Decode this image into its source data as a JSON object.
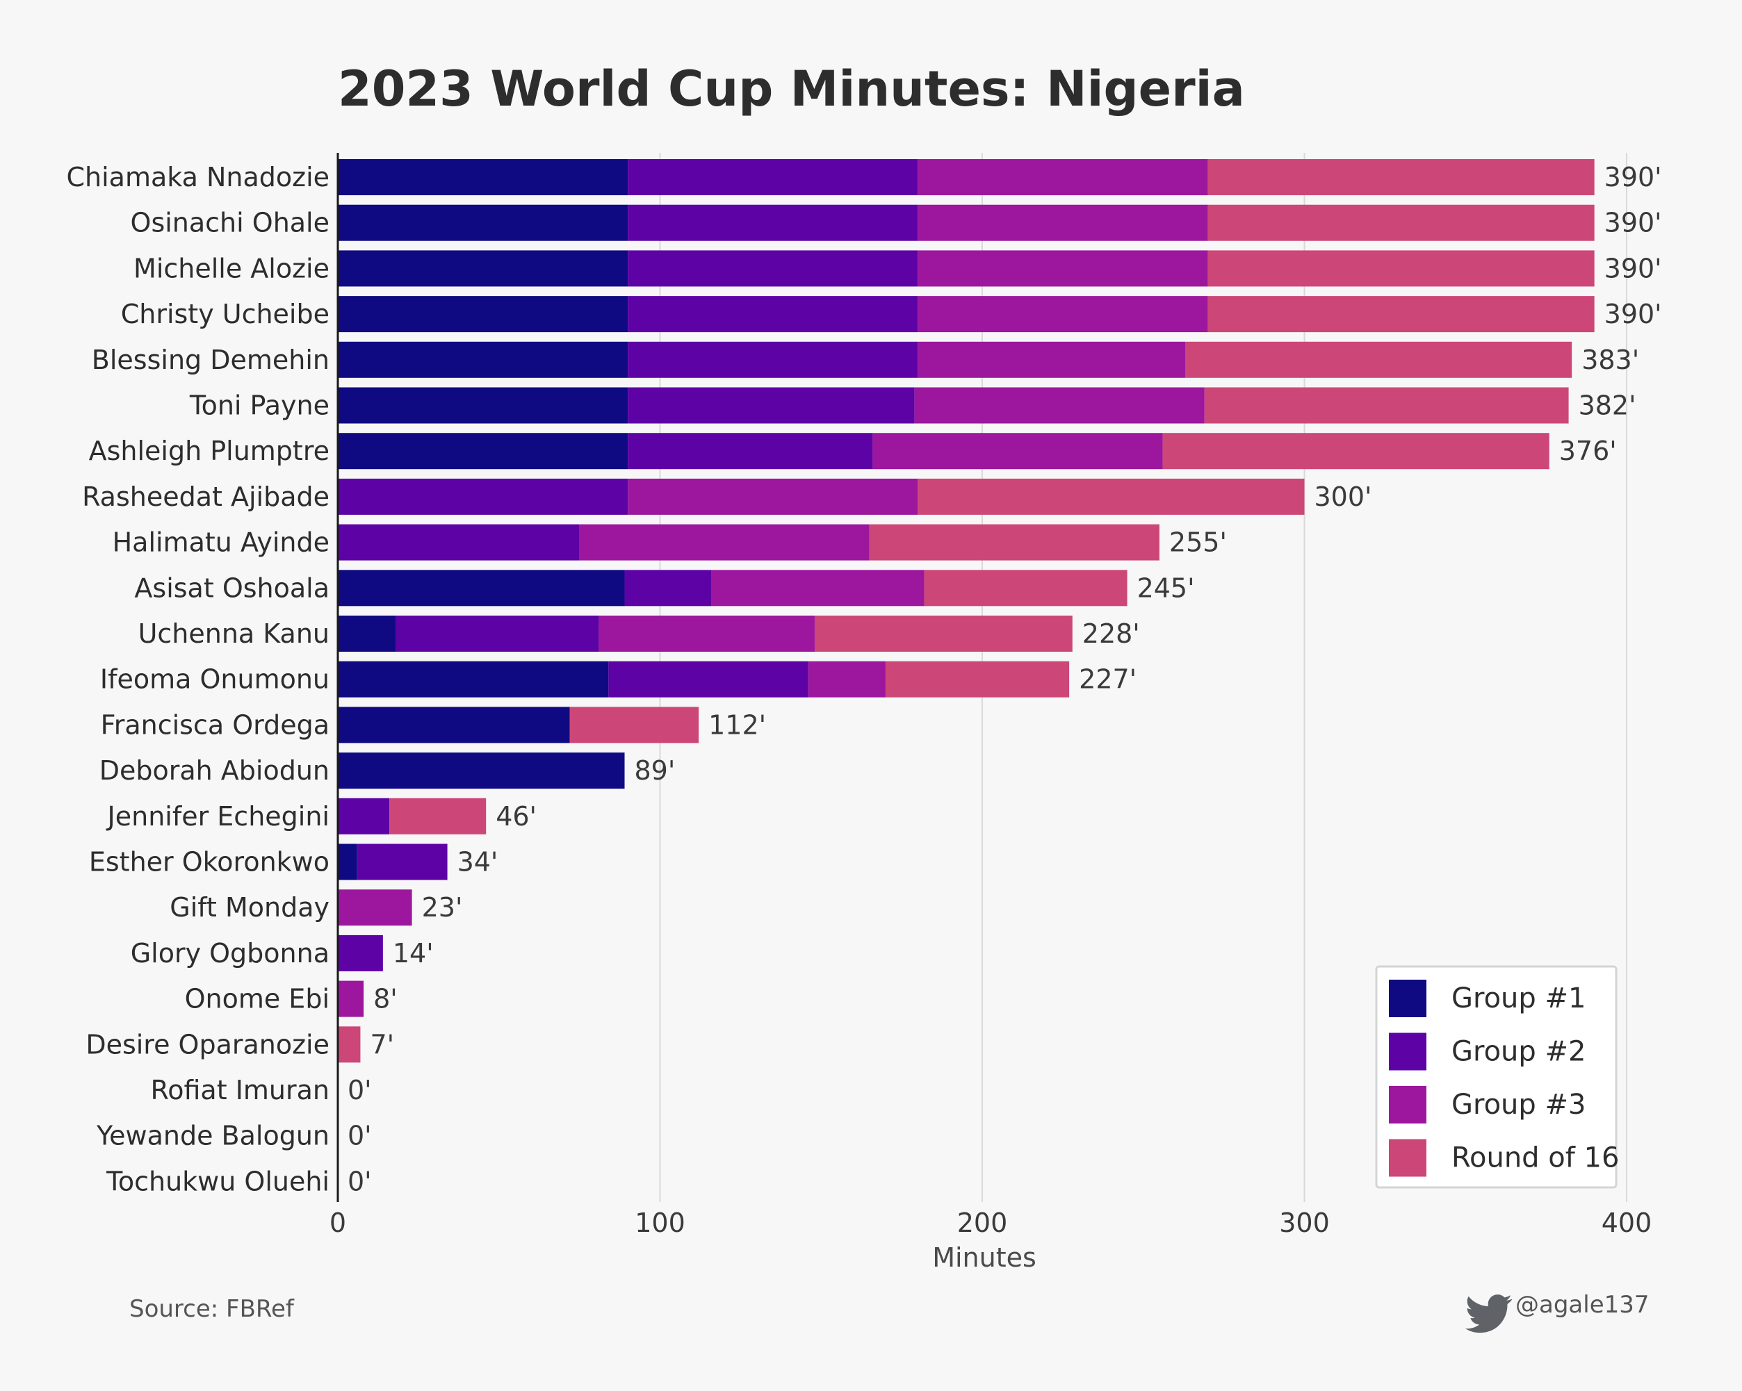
{
  "chart_data": {
    "type": "bar",
    "orientation": "horizontal",
    "stacked": true,
    "title": "2023 World Cup Minutes: Nigeria",
    "xlabel": "Minutes",
    "ylabel": "",
    "xlim": [
      0,
      400
    ],
    "xticks": [
      0,
      100,
      200,
      300,
      400
    ],
    "grid": "vertical",
    "legend_position": "bottom-right",
    "value_suffix": "'",
    "categories": [
      "Chiamaka Nnadozie",
      "Osinachi Ohale",
      "Michelle Alozie",
      "Christy Ucheibe",
      "Blessing Demehin",
      "Toni Payne",
      "Ashleigh Plumptre",
      "Rasheedat Ajibade",
      "Halimatu Ayinde",
      "Asisat Oshoala",
      "Uchenna Kanu",
      "Ifeoma Onumonu",
      "Francisca Ordega",
      "Deborah Abiodun",
      "Jennifer Echegini",
      "Esther Okoronkwo",
      "Gift Monday",
      "Glory Ogbonna",
      "Onome Ebi",
      "Desire Oparanozie",
      "Rofiat Imuran",
      "Yewande Balogun",
      "Tochukwu Oluehi"
    ],
    "totals": [
      390,
      390,
      390,
      390,
      383,
      382,
      376,
      300,
      255,
      245,
      228,
      227,
      112,
      89,
      46,
      34,
      23,
      14,
      8,
      7,
      0,
      0,
      0
    ],
    "series": [
      {
        "name": "Group #1",
        "color": "#0f0a82",
        "values": [
          90,
          90,
          90,
          90,
          90,
          90,
          90,
          0,
          0,
          89,
          18,
          84,
          72,
          89,
          0,
          6,
          0,
          0,
          0,
          0,
          0,
          0,
          0
        ]
      },
      {
        "name": "Group #2",
        "color": "#5d03a6",
        "values": [
          90,
          90,
          90,
          90,
          90,
          89,
          76,
          90,
          75,
          27,
          63,
          62,
          0,
          0,
          16,
          28,
          0,
          14,
          0,
          0,
          0,
          0,
          0
        ]
      },
      {
        "name": "Group #3",
        "color": "#9c179e",
        "values": [
          90,
          90,
          90,
          90,
          83,
          90,
          90,
          90,
          90,
          66,
          67,
          24,
          0,
          0,
          0,
          0,
          23,
          0,
          8,
          0,
          0,
          0,
          0
        ]
      },
      {
        "name": "Round of 16",
        "color": "#cc4778",
        "values": [
          120,
          120,
          120,
          120,
          120,
          113,
          120,
          120,
          90,
          63,
          80,
          57,
          40,
          0,
          30,
          0,
          0,
          0,
          0,
          7,
          0,
          0,
          0
        ]
      }
    ]
  },
  "footer": {
    "source": "Source: FBRef",
    "handle": "@agale137"
  },
  "icons": {
    "handle_icon": "twitter-bird-icon"
  }
}
